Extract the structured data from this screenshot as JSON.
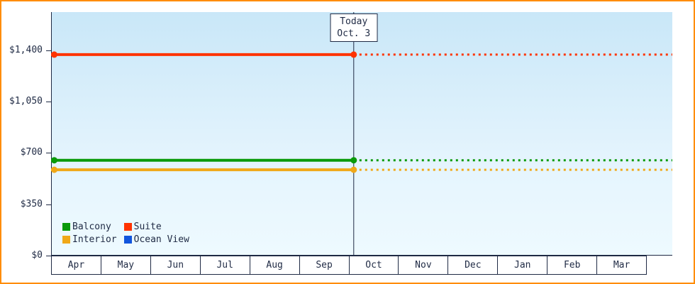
{
  "chart_data": {
    "type": "line",
    "title": "",
    "months": [
      "Apr",
      "May",
      "Jun",
      "Jul",
      "Aug",
      "Sep",
      "Oct",
      "Nov",
      "Dec",
      "Jan",
      "Feb",
      "Mar"
    ],
    "ylim": [
      0,
      1660
    ],
    "grid": false,
    "legend_position": "bottom-left-inside",
    "y_ticks": [
      {
        "value": 0,
        "label": "$0"
      },
      {
        "value": 350,
        "label": "$350"
      },
      {
        "value": 700,
        "label": "$700"
      },
      {
        "value": 1050,
        "label": "$1,050"
      },
      {
        "value": 1400,
        "label": "$1,400"
      }
    ],
    "series": [
      {
        "id": "balcony",
        "name": "Balcony",
        "color": "#0a9a0a",
        "value": 650,
        "style": "solid-then-dotted-after-today"
      },
      {
        "id": "suite",
        "name": "Suite",
        "color": "#ff3300",
        "value": 1370,
        "style": "solid-then-dotted-after-today"
      },
      {
        "id": "interior",
        "name": "Interior",
        "color": "#f0a818",
        "value": 585,
        "style": "solid-then-dotted-after-today"
      },
      {
        "id": "ocean-view",
        "name": "Ocean View",
        "color": "#1155dd",
        "value": null,
        "style": "none"
      }
    ],
    "today": {
      "line1": "Today",
      "line2": "Oct. 3",
      "month_index": 6,
      "day_fraction": 0.097
    },
    "colors": {
      "frame_border": "#ff8c00",
      "axis_and_text": "#1f2a44",
      "plot_bg_top": "#c9e7f8",
      "plot_bg_bottom": "#eefaff"
    }
  }
}
